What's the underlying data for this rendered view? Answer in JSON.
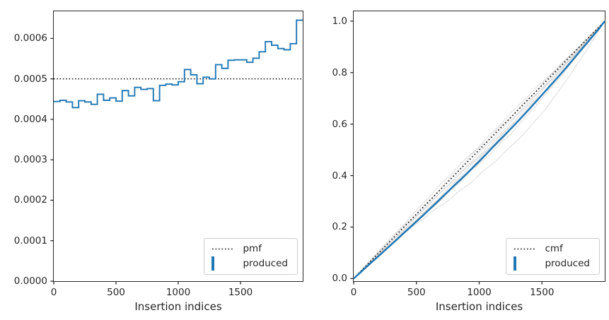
{
  "figure": {
    "background": "#ffffff",
    "text_color": "#262626",
    "accent_blue": "#1f77b4",
    "reference_black": "#141414",
    "faint_gray": "#bfbfbf",
    "legend_border": "#cccccc"
  },
  "left_plot": {
    "xlabel": "Insertion indices",
    "x_tick_labels": [
      "0",
      "500",
      "1000",
      "1500"
    ],
    "y_tick_labels": [
      "0.0000",
      "0.0001",
      "0.0002",
      "0.0003",
      "0.0004",
      "0.0005",
      "0.0006"
    ],
    "legend": {
      "items": [
        {
          "label": "pmf"
        },
        {
          "label": "produced"
        }
      ]
    }
  },
  "right_plot": {
    "xlabel": "Insertion indices",
    "x_tick_labels": [
      "0",
      "500",
      "1000",
      "1500"
    ],
    "y_tick_labels": [
      "0.0",
      "0.2",
      "0.4",
      "0.6",
      "0.8",
      "1.0"
    ],
    "legend": {
      "items": [
        {
          "label": "cmf"
        },
        {
          "label": "produced"
        }
      ]
    }
  },
  "chart_data": [
    {
      "type": "line",
      "subtype": "step-histogram-pmf",
      "title": "",
      "xlabel": "Insertion indices",
      "ylabel": "",
      "xlim": [
        0,
        2000
      ],
      "ylim": [
        0,
        0.000667
      ],
      "x_ticks": [
        0,
        500,
        1000,
        1500
      ],
      "y_ticks": [
        0,
        0.0001,
        0.0002,
        0.0003,
        0.0004,
        0.0005,
        0.0006
      ],
      "grid": false,
      "legend_position": "lower right",
      "series": [
        {
          "name": "pmf",
          "style": "dotted-horizontal-line",
          "color": "#141414",
          "value": 0.0005
        },
        {
          "name": "produced",
          "style": "step",
          "color": "#1f77b4",
          "bin_start": 0,
          "bin_width": 50,
          "values": [
            0.000444,
            0.000447,
            0.000443,
            0.000429,
            0.000446,
            0.000443,
            0.000437,
            0.000462,
            0.000447,
            0.000453,
            0.000445,
            0.000471,
            0.000458,
            0.000479,
            0.000474,
            0.000476,
            0.000446,
            0.000484,
            0.000487,
            0.000485,
            0.000493,
            0.000523,
            0.00051,
            0.000488,
            0.000504,
            0.0005,
            0.000535,
            0.000526,
            0.000546,
            0.000547,
            0.000547,
            0.000541,
            0.000551,
            0.000567,
            0.000592,
            0.000583,
            0.000575,
            0.000572,
            0.000587,
            0.000645
          ]
        }
      ]
    },
    {
      "type": "line",
      "subtype": "cdf",
      "title": "",
      "xlabel": "Insertion indices",
      "ylabel": "",
      "xlim": [
        0,
        2000
      ],
      "ylim": [
        -0.01,
        1.038
      ],
      "x_ticks": [
        0,
        500,
        1000,
        1500
      ],
      "y_ticks": [
        0,
        0.2,
        0.4,
        0.6,
        0.8,
        1.0
      ],
      "grid": false,
      "legend_position": "lower right",
      "series": [
        {
          "name": "cmf",
          "style": "dotted-straight-line",
          "color": "#141414",
          "points": [
            [
              0,
              0
            ],
            [
              2000,
              1
            ]
          ]
        },
        {
          "name": "produced",
          "style": "solid",
          "color": "#1f77b4",
          "note": "cumulative of produced pmf bins, normalized",
          "sampled_points_x": [
            0,
            200,
            400,
            600,
            800,
            1000,
            1200,
            1400,
            1600,
            1800,
            2000
          ],
          "sampled_points_y": [
            0,
            0.088,
            0.177,
            0.267,
            0.361,
            0.456,
            0.556,
            0.659,
            0.767,
            0.882,
            1.0
          ]
        },
        {
          "name": "background-runs",
          "style": "faint",
          "color": "#bfbfbf",
          "count": 9,
          "runs": [
            {
              "peak": 0.45,
              "dev": 0.018
            },
            {
              "peak": 0.5,
              "dev": 0.006
            },
            {
              "peak": 0.5,
              "dev": -0.012
            },
            {
              "peak": 0.55,
              "dev": -0.02
            },
            {
              "peak": 0.5,
              "dev": -0.03
            },
            {
              "peak": 0.55,
              "dev": -0.038
            },
            {
              "peak": 0.58,
              "dev": -0.048
            },
            {
              "peak": 0.6,
              "dev": -0.06
            },
            {
              "peak": 0.65,
              "dev": -0.115
            }
          ]
        }
      ]
    }
  ]
}
